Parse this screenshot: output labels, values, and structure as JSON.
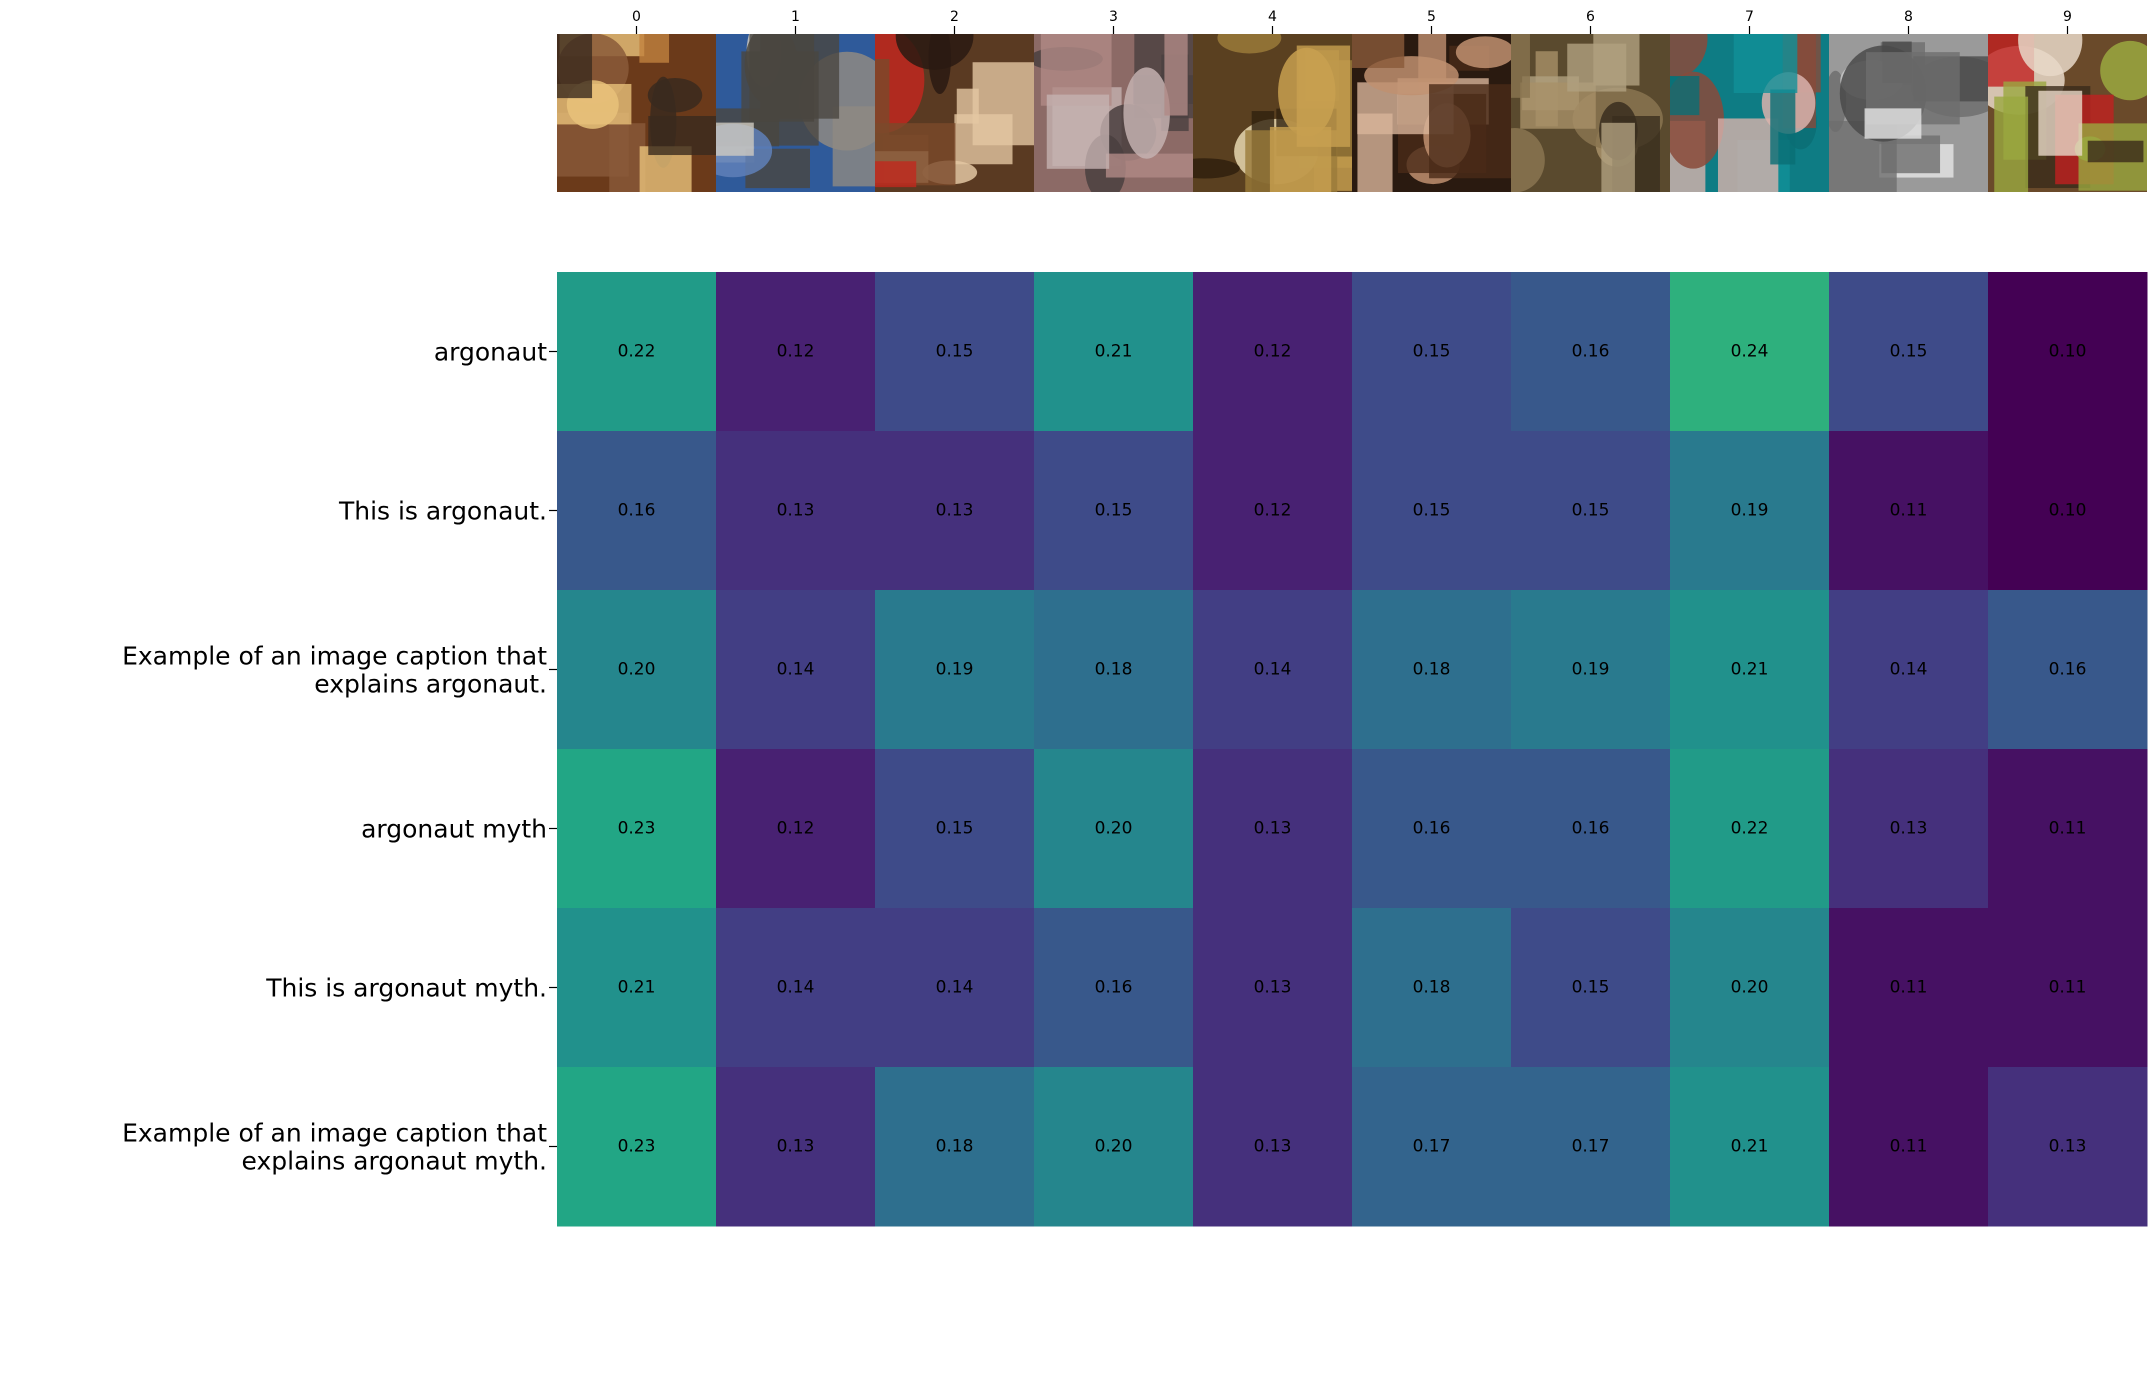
{
  "chart_data": {
    "type": "heatmap",
    "title": "",
    "xlabel": "",
    "ylabel": "",
    "x_tick_labels": [
      "0",
      "1",
      "2",
      "3",
      "4",
      "5",
      "6",
      "7",
      "8",
      "9"
    ],
    "images": [
      {
        "index": "0",
        "subject": "baroque painting of mythological figures, warm reds and golds"
      },
      {
        "index": "1",
        "subject": "gothic cathedral facade with twin spires, blue sky"
      },
      {
        "index": "2",
        "subject": "renaissance painting of a money changer and woman at table"
      },
      {
        "index": "3",
        "subject": "sculptural figures on a brick building corner"
      },
      {
        "index": "4",
        "subject": "ornate gilded interior with altar or tomb"
      },
      {
        "index": "5",
        "subject": "baroque painting of dramatic figures, dark background"
      },
      {
        "index": "6",
        "subject": "bronze hexagonal relief panel"
      },
      {
        "index": "7",
        "subject": "argonaut nautilus shell on teal background"
      },
      {
        "index": "8",
        "subject": "black and white photo of a propeller airliner"
      },
      {
        "index": "9",
        "subject": "painting of a crowd of figures around a table, red and green"
      }
    ],
    "rows": [
      "argonaut",
      "This is argonaut.",
      "Example of an image caption that explains argonaut.",
      "argonaut myth",
      "This is argonaut myth.",
      "Example of an image caption that explains argonaut myth."
    ],
    "values": [
      [
        0.22,
        0.12,
        0.15,
        0.21,
        0.12,
        0.15,
        0.16,
        0.24,
        0.15,
        0.1
      ],
      [
        0.16,
        0.13,
        0.13,
        0.15,
        0.12,
        0.15,
        0.15,
        0.19,
        0.11,
        0.1
      ],
      [
        0.2,
        0.14,
        0.19,
        0.18,
        0.14,
        0.18,
        0.19,
        0.21,
        0.14,
        0.16
      ],
      [
        0.23,
        0.12,
        0.15,
        0.2,
        0.13,
        0.16,
        0.16,
        0.22,
        0.13,
        0.11
      ],
      [
        0.21,
        0.14,
        0.14,
        0.16,
        0.13,
        0.18,
        0.15,
        0.2,
        0.11,
        0.11
      ],
      [
        0.23,
        0.13,
        0.18,
        0.2,
        0.13,
        0.17,
        0.17,
        0.21,
        0.11,
        0.13
      ]
    ],
    "value_format": "2 decimals",
    "colormap": "viridis",
    "color_range": [
      0.1,
      0.32
    ],
    "grid": false,
    "legend": "none"
  }
}
